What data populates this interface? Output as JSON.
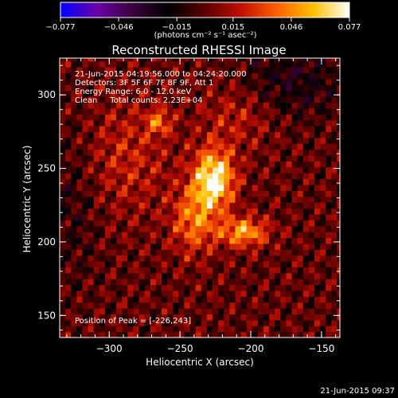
{
  "chart_data": {
    "type": "heatmap",
    "title": "Reconstructed RHESSI Image",
    "xlabel": "Heliocentric X (arcsec)",
    "ylabel": "Heliocentric Y (arcsec)",
    "xlim": [
      -335,
      -137
    ],
    "ylim": [
      135,
      325
    ],
    "x_ticks": [
      {
        "value": -300,
        "label": "−300"
      },
      {
        "value": -250,
        "label": "−250"
      },
      {
        "value": -200,
        "label": "−200"
      },
      {
        "value": -150,
        "label": "−150"
      }
    ],
    "y_ticks": [
      {
        "value": 150,
        "label": "150"
      },
      {
        "value": 200,
        "label": "200"
      },
      {
        "value": 250,
        "label": "250"
      },
      {
        "value": 300,
        "label": "300"
      }
    ],
    "colorbar": {
      "range": [
        -0.077,
        0.077
      ],
      "ticks": [
        {
          "value": -0.077,
          "label": "−0.077"
        },
        {
          "value": -0.046,
          "label": "−0.046"
        },
        {
          "value": -0.015,
          "label": "−0.015"
        },
        {
          "value": 0.015,
          "label": "0.015"
        },
        {
          "value": 0.046,
          "label": "0.046"
        },
        {
          "value": 0.077,
          "label": "0.077"
        }
      ],
      "unit_label": "(photons cm⁻² s⁻¹ asec⁻²)",
      "colors": [
        "#0000ff",
        "#6a00a8",
        "#3a003a",
        "#000000",
        "#5a0000",
        "#c01000",
        "#ff6000",
        "#ffc000",
        "#ffffff"
      ]
    },
    "annotations": [
      "21-Jun-2015 04:19:56.000 to 04:24:20.000",
      "Detectors: 3F 5F 6F 7F 8F 9F, Att 1",
      "Energy Range: 6.0 - 12.0 keV",
      "Clean     Total counts: 2.23E+04"
    ],
    "peak_label": "Position of Peak = [-226,243]",
    "peak": [
      -226,
      243
    ],
    "sources": [
      {
        "x": -226,
        "y": 243,
        "sigma_x": 10,
        "sigma_y": 14,
        "amp": 0.077
      },
      {
        "x": -205,
        "y": 207,
        "sigma_x": 12,
        "sigma_y": 7,
        "amp": 0.052
      },
      {
        "x": -240,
        "y": 215,
        "sigma_x": 11,
        "sigma_y": 16,
        "amp": 0.04
      },
      {
        "x": -265,
        "y": 282,
        "sigma_x": 6,
        "sigma_y": 6,
        "amp": 0.035
      },
      {
        "x": -288,
        "y": 258,
        "sigma_x": 22,
        "sigma_y": 28,
        "amp": 0.02
      },
      {
        "x": -210,
        "y": 285,
        "sigma_x": 18,
        "sigma_y": 15,
        "amp": 0.018
      }
    ]
  },
  "footer_timestamp": "21-Jun-2015 09:37"
}
